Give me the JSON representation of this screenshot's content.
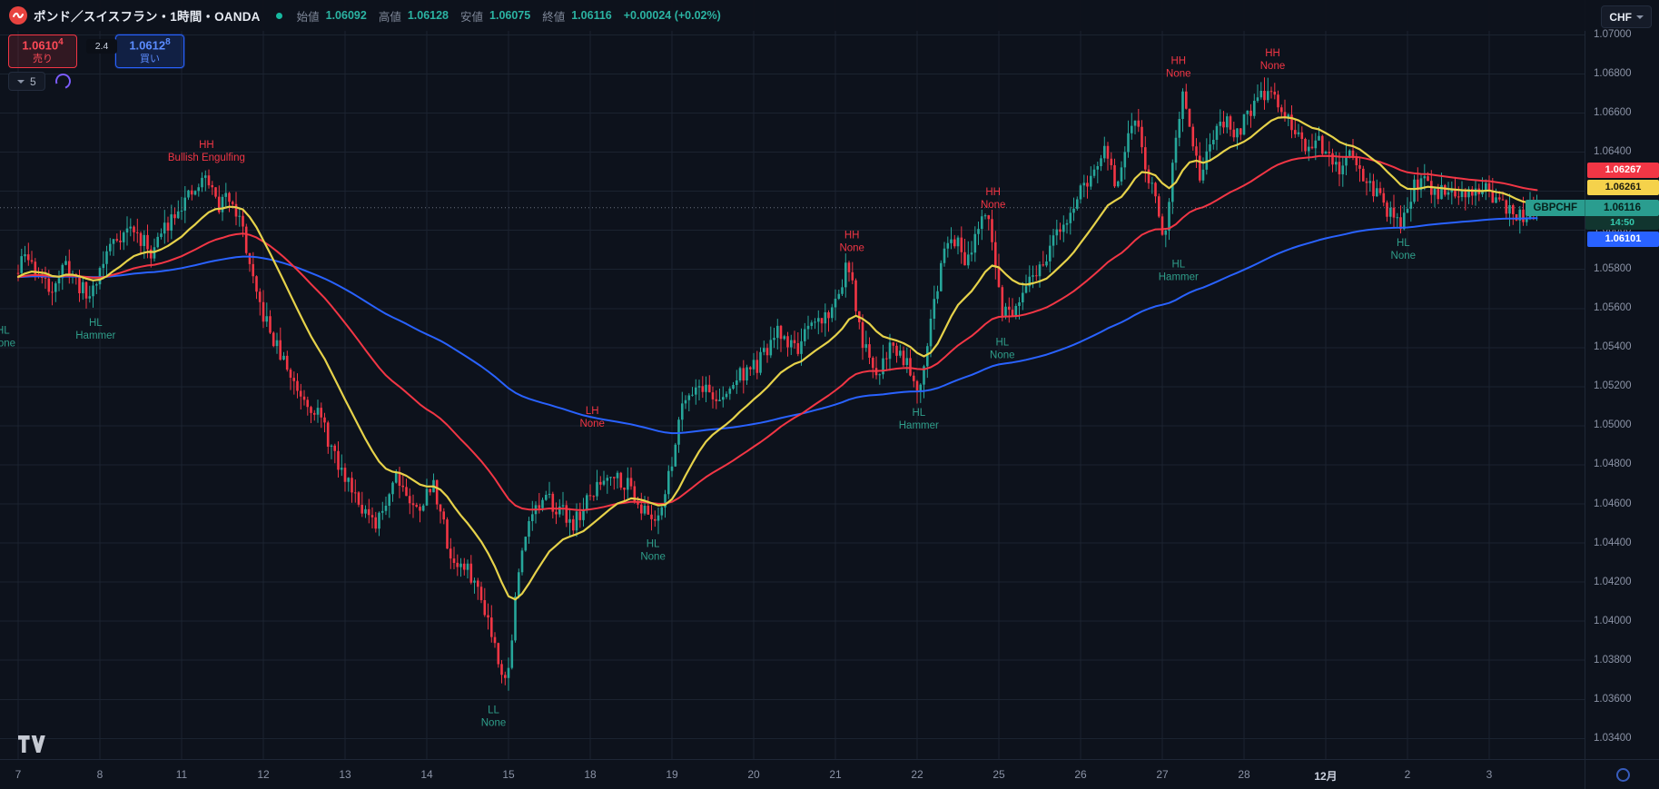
{
  "header": {
    "symbol_title": "ポンド／スイスフラン・1時間・OANDA",
    "ohlc": {
      "o_label": "始値",
      "o": "1.06092",
      "h_label": "高値",
      "h": "1.06128",
      "l_label": "安値",
      "l": "1.06075",
      "c_label": "終値",
      "c": "1.06116",
      "change": "+0.00024 (+0.02%)"
    },
    "currency_button": {
      "label": "CHF"
    }
  },
  "trade_panel": {
    "sell": {
      "price": "1.0610",
      "sup": "4",
      "label": "売り"
    },
    "spread": "2.4",
    "buy": {
      "price": "1.0612",
      "sup": "8",
      "label": "買い"
    }
  },
  "toolbar2": {
    "candles_count": "5"
  },
  "price_scale": {
    "ma_tags": [
      {
        "text": "1.06267",
        "type": "ma-medium-red"
      },
      {
        "text": "1.06261",
        "type": "ma-fast-yellow"
      }
    ],
    "symbol_tag": {
      "symbol": "GBPCHF",
      "price": "1.06116",
      "countdown": "14:50"
    },
    "slow_tag": {
      "text": "1.06101",
      "type": "ma-slow-blue"
    }
  },
  "chart_data": {
    "type": "candlestick",
    "title": "GBPCHF 1H OANDA",
    "timeframe": "1時間",
    "ylim": [
      1.033,
      1.0705
    ],
    "y_ticks": [
      "1.07000",
      "1.06800",
      "1.06600",
      "1.06400",
      "1.06200",
      "1.06000",
      "1.05800",
      "1.05600",
      "1.05400",
      "1.05200",
      "1.05000",
      "1.04800",
      "1.04600",
      "1.04400",
      "1.04200",
      "1.04000",
      "1.03800",
      "1.03600",
      "1.03400"
    ],
    "x_labels": [
      "7",
      "8",
      "11",
      "12",
      "13",
      "14",
      "15",
      "18",
      "19",
      "20",
      "21",
      "22",
      "25",
      "26",
      "27",
      "28",
      "12月",
      "2",
      "3"
    ],
    "month_label_index": 16,
    "candles_per_day": 24,
    "last_price": 1.06116,
    "last_change": "+0.00024 (+0.02%)",
    "up_color": "#26a69a",
    "down_color": "#f23645",
    "grid": true,
    "price_path": [
      [
        0.0,
        1.0578
      ],
      [
        0.004,
        1.0588
      ],
      [
        0.02,
        1.057
      ],
      [
        0.032,
        1.0582
      ],
      [
        0.046,
        1.0565
      ],
      [
        0.062,
        1.0595
      ],
      [
        0.074,
        1.0601
      ],
      [
        0.088,
        1.0589
      ],
      [
        0.104,
        1.0612
      ],
      [
        0.114,
        1.0617
      ],
      [
        0.124,
        1.0628
      ],
      [
        0.132,
        1.0612
      ],
      [
        0.14,
        1.0619
      ],
      [
        0.148,
        1.06
      ],
      [
        0.156,
        1.0567
      ],
      [
        0.169,
        1.0542
      ],
      [
        0.183,
        1.052
      ],
      [
        0.198,
        1.0506
      ],
      [
        0.211,
        1.0478
      ],
      [
        0.221,
        1.0468
      ],
      [
        0.235,
        1.0446
      ],
      [
        0.249,
        1.0477
      ],
      [
        0.261,
        1.0456
      ],
      [
        0.274,
        1.047
      ],
      [
        0.285,
        1.0432
      ],
      [
        0.298,
        1.0424
      ],
      [
        0.308,
        1.0406
      ],
      [
        0.316,
        1.0382
      ],
      [
        0.322,
        1.0368
      ],
      [
        0.328,
        1.0416
      ],
      [
        0.336,
        1.0455
      ],
      [
        0.35,
        1.0462
      ],
      [
        0.366,
        1.045
      ],
      [
        0.379,
        1.0466
      ],
      [
        0.39,
        1.0477
      ],
      [
        0.403,
        1.0469
      ],
      [
        0.412,
        1.0456
      ],
      [
        0.419,
        1.0452
      ],
      [
        0.427,
        1.0467
      ],
      [
        0.438,
        1.0516
      ],
      [
        0.45,
        1.0521
      ],
      [
        0.463,
        1.0511
      ],
      [
        0.474,
        1.0526
      ],
      [
        0.487,
        1.0531
      ],
      [
        0.5,
        1.0547
      ],
      [
        0.513,
        1.054
      ],
      [
        0.526,
        1.0553
      ],
      [
        0.537,
        1.056
      ],
      [
        0.546,
        1.0584
      ],
      [
        0.555,
        1.0546
      ],
      [
        0.564,
        1.0523
      ],
      [
        0.574,
        1.0542
      ],
      [
        0.585,
        1.0534
      ],
      [
        0.593,
        1.0519
      ],
      [
        0.603,
        1.0562
      ],
      [
        0.613,
        1.0601
      ],
      [
        0.624,
        1.0585
      ],
      [
        0.632,
        1.0602
      ],
      [
        0.639,
        1.0604
      ],
      [
        0.648,
        1.056
      ],
      [
        0.656,
        1.0556
      ],
      [
        0.666,
        1.0572
      ],
      [
        0.676,
        1.0586
      ],
      [
        0.687,
        1.0601
      ],
      [
        0.697,
        1.0616
      ],
      [
        0.708,
        1.0629
      ],
      [
        0.716,
        1.0641
      ],
      [
        0.723,
        1.0621
      ],
      [
        0.731,
        1.0646
      ],
      [
        0.736,
        1.0659
      ],
      [
        0.742,
        1.0636
      ],
      [
        0.75,
        1.0611
      ],
      [
        0.755,
        1.0596
      ],
      [
        0.761,
        1.0644
      ],
      [
        0.767,
        1.0668
      ],
      [
        0.773,
        1.0641
      ],
      [
        0.779,
        1.0626
      ],
      [
        0.786,
        1.0648
      ],
      [
        0.795,
        1.0655
      ],
      [
        0.802,
        1.0649
      ],
      [
        0.81,
        1.0661
      ],
      [
        0.818,
        1.0667
      ],
      [
        0.825,
        1.0674
      ],
      [
        0.832,
        1.0661
      ],
      [
        0.839,
        1.0651
      ],
      [
        0.847,
        1.0641
      ],
      [
        0.855,
        1.0649
      ],
      [
        0.862,
        1.0636
      ],
      [
        0.871,
        1.0629
      ],
      [
        0.879,
        1.0641
      ],
      [
        0.886,
        1.0626
      ],
      [
        0.894,
        1.0619
      ],
      [
        0.902,
        1.0609
      ],
      [
        0.91,
        1.0601
      ],
      [
        0.918,
        1.0621
      ],
      [
        0.926,
        1.0626
      ],
      [
        0.934,
        1.0619
      ],
      [
        0.942,
        1.0623
      ],
      [
        0.949,
        1.0616
      ],
      [
        0.958,
        1.0621
      ],
      [
        0.965,
        1.0622
      ],
      [
        0.975,
        1.0614
      ],
      [
        0.985,
        1.0606
      ],
      [
        0.993,
        1.0609
      ],
      [
        1.0,
        1.06116
      ]
    ],
    "moving_averages": [
      {
        "name": "fast",
        "color": "#e6d24a",
        "period": 24,
        "last_value": 1.06261
      },
      {
        "name": "medium",
        "color": "#f23645",
        "period": 72,
        "last_value": 1.06267
      },
      {
        "name": "slow",
        "color": "#2962ff",
        "period": 200,
        "last_value": 1.06101
      }
    ],
    "marker_colors": {
      "red": "#f23645",
      "teal": "#2f9e8a"
    },
    "markers": [
      {
        "f": -0.01,
        "price": 1.0547,
        "lines": [
          "HL",
          "None"
        ],
        "color": "teal"
      },
      {
        "f": 0.051,
        "price": 1.0551,
        "lines": [
          "HL",
          "Hammer"
        ],
        "color": "teal"
      },
      {
        "f": 0.124,
        "price": 1.0642,
        "lines": [
          "HH",
          "Bullish Engulfing"
        ],
        "color": "red"
      },
      {
        "f": 0.313,
        "price": 1.0353,
        "lines": [
          "LL",
          "None"
        ],
        "color": "teal"
      },
      {
        "f": 0.378,
        "price": 1.0506,
        "lines": [
          "LH",
          "None"
        ],
        "color": "red"
      },
      {
        "f": 0.418,
        "price": 1.0438,
        "lines": [
          "HL",
          "None"
        ],
        "color": "teal"
      },
      {
        "f": 0.549,
        "price": 1.0596,
        "lines": [
          "HH",
          "None"
        ],
        "color": "red"
      },
      {
        "f": 0.593,
        "price": 1.0505,
        "lines": [
          "HL",
          "Hammer"
        ],
        "color": "teal"
      },
      {
        "f": 0.642,
        "price": 1.0618,
        "lines": [
          "HH",
          "None"
        ],
        "color": "red"
      },
      {
        "f": 0.648,
        "price": 1.0541,
        "lines": [
          "HL",
          "None"
        ],
        "color": "teal"
      },
      {
        "f": 0.764,
        "price": 1.0685,
        "lines": [
          "HH",
          "None"
        ],
        "color": "red"
      },
      {
        "f": 0.764,
        "price": 1.0581,
        "lines": [
          "HL",
          "Hammer"
        ],
        "color": "teal"
      },
      {
        "f": 0.826,
        "price": 1.0689,
        "lines": [
          "HH",
          "None"
        ],
        "color": "red"
      },
      {
        "f": 0.912,
        "price": 1.0592,
        "lines": [
          "HL",
          "None"
        ],
        "color": "teal"
      }
    ]
  }
}
